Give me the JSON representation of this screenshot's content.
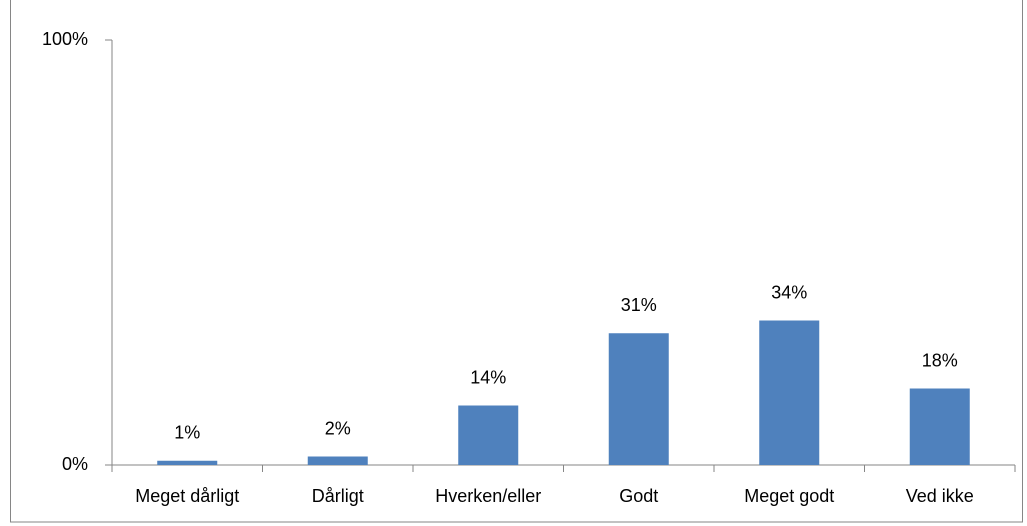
{
  "chart_data": {
    "type": "bar",
    "categories": [
      "Meget dårligt",
      "Dårligt",
      "Hverken/eller",
      "Godt",
      "Meget godt",
      "Ved ikke"
    ],
    "values": [
      1,
      2,
      14,
      31,
      34,
      18
    ],
    "value_labels": [
      "1%",
      "2%",
      "14%",
      "31%",
      "34%",
      "18%"
    ],
    "color": "#4f81bd",
    "ylim": [
      0,
      100
    ],
    "yticks": [
      {
        "value": 0,
        "label": "0%"
      },
      {
        "value": 100,
        "label": "100%"
      }
    ],
    "grid": false
  }
}
